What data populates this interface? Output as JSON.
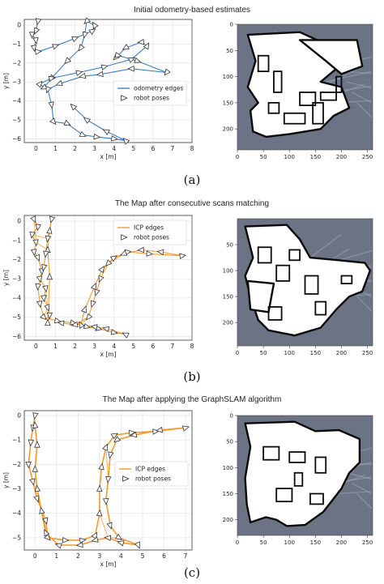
{
  "figures": [
    {
      "title": "Initial odometry-based estimates",
      "tag": "(a)"
    },
    {
      "title": "The Map after consecutive scans matching",
      "tag": "(b)"
    },
    {
      "title": "The Map after applying the GraphSLAM algorithm",
      "tag": "(c)"
    }
  ],
  "colors": {
    "odometry": "#3a7fc1",
    "icp": "#f39a2e",
    "map_bg": "#6b7385",
    "map_free": "#ffffff",
    "map_wall": "#0a0a0a",
    "grid": "#e3e3e3"
  },
  "chart_data": [
    {
      "type": "line",
      "xlabel": "x [m]",
      "ylabel": "y [m]",
      "xlim": [
        -0.6,
        8
      ],
      "ylim": [
        -6.2,
        0.3
      ],
      "xticks": [
        "0",
        "1",
        "2",
        "3",
        "4",
        "5",
        "6",
        "7",
        "8"
      ],
      "yticks": [
        "0",
        "−1",
        "−2",
        "−3",
        "−4",
        "−5",
        "−6"
      ],
      "grid": true,
      "legend_position": "center-right",
      "legend": [
        "odometry edges",
        "robot poses"
      ],
      "series": [
        {
          "name": "odometry edges",
          "color": "#3a7fc1",
          "points": [
            [
              0.1,
              0.2
            ],
            [
              0,
              -0.3
            ],
            [
              -0.2,
              -0.5
            ],
            [
              0,
              -0.8
            ],
            [
              -0.1,
              -1.2
            ],
            [
              0.1,
              -1.4
            ],
            [
              1,
              -1.1
            ],
            [
              2,
              -0.7
            ],
            [
              2.9,
              -0.3
            ],
            [
              3,
              0
            ],
            [
              2.6,
              0.2
            ],
            [
              2.5,
              -0.5
            ],
            [
              2.3,
              -1.2
            ],
            [
              1.6,
              -1.9
            ],
            [
              0.8,
              -2.8
            ],
            [
              0.4,
              -3.3
            ],
            [
              0.2,
              -3.1
            ],
            [
              0.8,
              -2.8
            ],
            [
              2.2,
              -2.5
            ],
            [
              3.5,
              -2.2
            ],
            [
              4.9,
              -1.8
            ],
            [
              5.7,
              -1.1
            ],
            [
              5.4,
              -0.9
            ],
            [
              4.6,
              -1.2
            ],
            [
              4.1,
              -1.7
            ],
            [
              4.2,
              -1.6
            ],
            [
              5.2,
              -1.9
            ],
            [
              6.7,
              -2.5
            ],
            [
              4.9,
              -2.3
            ],
            [
              3.3,
              -2.6
            ],
            [
              2.4,
              -2.7
            ],
            [
              1.2,
              -3.1
            ],
            [
              0.6,
              -3.4
            ],
            [
              0.8,
              -4.2
            ],
            [
              0.9,
              -5.1
            ],
            [
              1.6,
              -5.2
            ],
            [
              2.4,
              -5.8
            ],
            [
              3.1,
              -5.9
            ],
            [
              4,
              -6
            ],
            [
              4.6,
              -6.1
            ],
            [
              3.6,
              -5.6
            ],
            [
              2.6,
              -5
            ],
            [
              1.9,
              -4.3
            ]
          ]
        }
      ]
    },
    {
      "type": "line",
      "xlabel": "x [m]",
      "ylabel": "y [m]",
      "xlim": [
        -0.6,
        8
      ],
      "ylim": [
        -6.2,
        0.3
      ],
      "xticks": [
        "0",
        "1",
        "2",
        "3",
        "4",
        "5",
        "6",
        "7",
        "8"
      ],
      "yticks": [
        "0",
        "−1",
        "−2",
        "−3",
        "−4",
        "−5",
        "−6"
      ],
      "grid": true,
      "legend_position": "top-right",
      "legend": [
        "ICP edges",
        "robot poses"
      ],
      "series": [
        {
          "name": "ICP edges",
          "color": "#f39a2e",
          "points": [
            [
              -0.1,
              0.1
            ],
            [
              0.1,
              -0.3
            ],
            [
              -0.2,
              -0.7
            ],
            [
              0,
              -1.1
            ],
            [
              -0.1,
              -1.6
            ],
            [
              0.1,
              -1.9
            ],
            [
              0.3,
              -2.6
            ],
            [
              0.2,
              -3
            ],
            [
              0.5,
              -3.5
            ],
            [
              0.4,
              -4
            ],
            [
              0.6,
              -4.5
            ],
            [
              0.7,
              -4.9
            ],
            [
              0.6,
              -5.3
            ],
            [
              0.7,
              -2.9
            ],
            [
              0.6,
              -1.5
            ],
            [
              0.7,
              -0.5
            ],
            [
              0.8,
              0.1
            ],
            [
              0.6,
              -0.9
            ],
            [
              0.5,
              -1.7
            ],
            [
              0.4,
              -2.4
            ],
            [
              0.1,
              -3.4
            ],
            [
              0.2,
              -4.3
            ],
            [
              0.4,
              -5
            ],
            [
              1.1,
              -5.2
            ],
            [
              1.9,
              -5.3
            ],
            [
              2.6,
              -5.5
            ],
            [
              3.2,
              -5.6
            ],
            [
              4,
              -5.8
            ],
            [
              4.6,
              -5.9
            ],
            [
              3.6,
              -5.6
            ],
            [
              3,
              -5.5
            ],
            [
              2.3,
              -5.4
            ],
            [
              2.5,
              -4.6
            ],
            [
              3,
              -3.4
            ],
            [
              3.4,
              -2.5
            ],
            [
              4,
              -1.9
            ],
            [
              4.7,
              -1.6
            ],
            [
              5.8,
              -1.7
            ],
            [
              7.5,
              -1.8
            ],
            [
              6.4,
              -1.6
            ],
            [
              5.4,
              -1.5
            ],
            [
              4.5,
              -1.7
            ],
            [
              3.7,
              -2.2
            ],
            [
              3.3,
              -3
            ],
            [
              3.1,
              -3.7
            ],
            [
              2.9,
              -4.3
            ],
            [
              2.7,
              -5
            ],
            [
              2,
              -5.4
            ],
            [
              1.3,
              -5.3
            ]
          ]
        }
      ]
    },
    {
      "type": "line",
      "xlabel": "x [m]",
      "ylabel": "y [m]",
      "xlim": [
        -0.5,
        7.3
      ],
      "ylim": [
        -5.5,
        0.2
      ],
      "xticks": [
        "0",
        "1",
        "2",
        "3",
        "4",
        "5",
        "6",
        "7"
      ],
      "yticks": [
        "0",
        "−1",
        "−2",
        "−3",
        "−4",
        "−5"
      ],
      "grid": true,
      "legend_position": "center-right",
      "legend": [
        "ICP edges",
        "robot poses"
      ],
      "series": [
        {
          "name": "ICP edges",
          "color": "#f39a2e",
          "points": [
            [
              0,
              0
            ],
            [
              -0.1,
              -0.5
            ],
            [
              -0.2,
              -1.1
            ],
            [
              -0.3,
              -2
            ],
            [
              -0.1,
              -2.7
            ],
            [
              0.1,
              -3.4
            ],
            [
              0.5,
              -4.3
            ],
            [
              0.6,
              -5
            ],
            [
              1.4,
              -5.1
            ],
            [
              2.2,
              -5.1
            ],
            [
              2.8,
              -4.9
            ],
            [
              3,
              -4
            ],
            [
              3,
              -3
            ],
            [
              3.1,
              -2.1
            ],
            [
              3.3,
              -1.3
            ],
            [
              3.7,
              -0.8
            ],
            [
              4.5,
              -0.7
            ],
            [
              5.6,
              -0.65
            ],
            [
              7,
              -0.5
            ],
            [
              5.8,
              -0.6
            ],
            [
              4.6,
              -0.8
            ],
            [
              3.8,
              -1
            ],
            [
              3.5,
              -1.6
            ],
            [
              3.4,
              -2.6
            ],
            [
              3.3,
              -3.5
            ],
            [
              3.5,
              -4.5
            ],
            [
              3.9,
              -5
            ],
            [
              4.8,
              -5.3
            ],
            [
              4,
              -5.2
            ],
            [
              3.4,
              -5
            ],
            [
              2.8,
              -5.1
            ],
            [
              2.1,
              -5.3
            ],
            [
              1.1,
              -5.3
            ],
            [
              0.5,
              -4.8
            ],
            [
              0.3,
              -3.9
            ],
            [
              0.1,
              -3
            ],
            [
              0,
              -2.2
            ],
            [
              0.1,
              -1.2
            ],
            [
              0,
              -0.4
            ]
          ]
        }
      ]
    },
    {
      "type": "heatmap",
      "xticks": [
        "0",
        "50",
        "100",
        "150",
        "200",
        "250"
      ],
      "yticks": [
        "0",
        "50",
        "100",
        "150",
        "200"
      ],
      "xlim": [
        0,
        260
      ],
      "ylim": [
        0,
        240
      ]
    },
    {
      "type": "heatmap",
      "xticks": [
        "0",
        "50",
        "100",
        "150",
        "200",
        "250"
      ],
      "yticks": [
        "50",
        "100",
        "150",
        "200"
      ],
      "xlim": [
        0,
        260
      ],
      "ylim": [
        0,
        245
      ]
    },
    {
      "type": "heatmap",
      "xticks": [
        "0",
        "50",
        "100",
        "150",
        "200",
        "250"
      ],
      "yticks": [
        "0",
        "50",
        "100",
        "150",
        "200"
      ],
      "xlim": [
        0,
        260
      ],
      "ylim": [
        0,
        230
      ]
    }
  ]
}
